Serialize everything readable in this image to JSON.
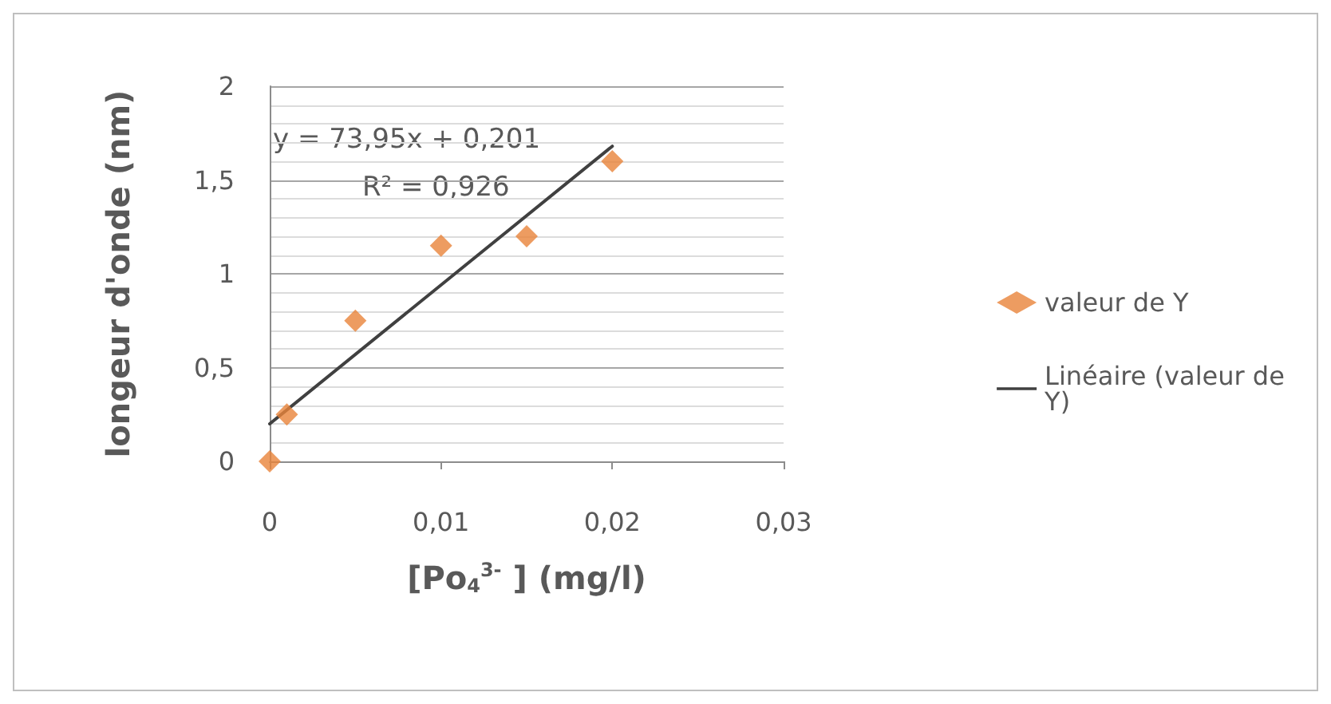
{
  "chart_data": {
    "type": "scatter",
    "xlabel": "[Po$_{4}$$^{3-}$ ] (mg/l)",
    "ylabel": "longeur d'onde (nm)",
    "annotations": [
      "y = 73,95x + 0,201",
      "R² = 0,926"
    ],
    "series": [
      {
        "name": "valeur de Y",
        "color": "#e8833a",
        "marker": "diamond",
        "x": [
          0,
          0.001,
          0.005,
          0.01,
          0.015,
          0.02
        ],
        "values": [
          0,
          0.25,
          0.75,
          1.15,
          1.2,
          1.6
        ]
      },
      {
        "name": "Linéaire (valeur de Y)",
        "type": "line",
        "color": "#404040",
        "marker": "none",
        "line_style": "solid",
        "x": [
          0,
          0.02
        ],
        "values": [
          0.2,
          1.68
        ]
      }
    ],
    "xlim": [
      0,
      0.03
    ],
    "xticks": [
      0,
      {
        "value": 0.01,
        "label": "0,01"
      },
      {
        "value": 0.02,
        "label": "0,02"
      },
      {
        "value": 0.03,
        "label": "0,03"
      }
    ],
    "ylim": [
      0,
      2
    ],
    "yticks": [
      0,
      {
        "value": 0.5,
        "label": "0,5"
      },
      1,
      {
        "value": 1.5,
        "label": "1,5"
      },
      2
    ],
    "grid": "y",
    "legend": "right"
  }
}
